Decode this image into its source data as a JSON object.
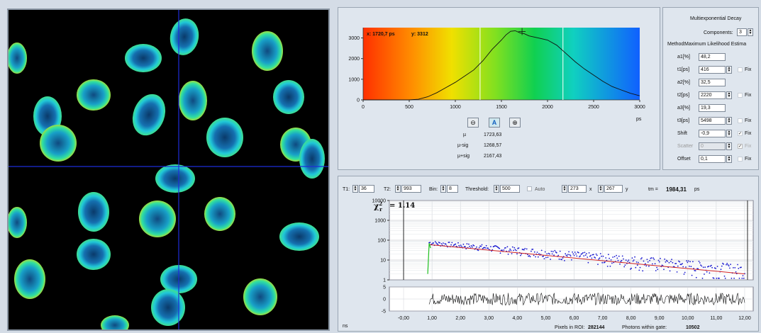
{
  "image": {
    "crosshair_color": "#1e2dd8"
  },
  "histogram": {
    "cursor_x": "x: 1720,7  ps",
    "cursor_y": "y: 3312",
    "unit": "ps",
    "zoom_out_icon": "zoom-out-icon",
    "auto_icon": "A",
    "zoom_in_icon": "zoom-in-icon",
    "stats": [
      {
        "label": "µ",
        "value": "1723,63"
      },
      {
        "label": "µ-sig",
        "value": "1268,57"
      },
      {
        "label": "µ+sig",
        "value": "2167,43"
      }
    ]
  },
  "chart_data": [
    {
      "type": "line",
      "title": "",
      "xlabel": "ps",
      "ylabel": "",
      "xlim": [
        0,
        3000
      ],
      "ylim": [
        0,
        3500
      ],
      "x_ticks": [
        "0",
        "500",
        "1000",
        "1500",
        "2000",
        "2500",
        "3000"
      ],
      "y_ticks": [
        "0",
        "1000",
        "2000",
        "3000"
      ],
      "colorbar": "rainbow red-to-blue",
      "series": [
        {
          "x": [
            0,
            500,
            600,
            700,
            800,
            900,
            1000,
            1100,
            1200,
            1300,
            1400,
            1500,
            1550,
            1600,
            1650,
            1700,
            1750,
            1800,
            1900,
            2000,
            2100,
            2200,
            2300,
            2400,
            2500,
            2600,
            2700,
            2800,
            2900,
            3000
          ],
          "y": [
            0,
            0,
            30,
            150,
            350,
            600,
            850,
            1150,
            1450,
            1900,
            2450,
            2900,
            3150,
            3320,
            3350,
            3250,
            3200,
            3100,
            3000,
            2900,
            2650,
            2250,
            1850,
            1500,
            1200,
            900,
            650,
            480,
            320,
            200
          ]
        }
      ],
      "markers_x": [
        1268.57,
        1723.63,
        2167.43
      ]
    },
    {
      "type": "scatter",
      "title": "",
      "xlabel": "ns",
      "ylabel": "",
      "y_scale": "log",
      "xlim": [
        -0.5,
        12.3
      ],
      "ylim": [
        1,
        10000
      ],
      "x_ticks": [
        "-0,00",
        "1,00",
        "2,00",
        "3,00",
        "4,00",
        "5,00",
        "6,00",
        "7,00",
        "8,00",
        "9,00",
        "10,00",
        "11,00",
        "12,00"
      ],
      "y_ticks": [
        "1",
        "10",
        "100",
        "1000",
        "10000"
      ],
      "chi_label": "χ",
      "chi_sub": "r",
      "chi_sup": "2",
      "chi_value": "= 1.14",
      "series": [
        {
          "name": "",
          "color": "#1a1ad0",
          "x": [
            0.9,
            12.0
          ],
          "y": [
            75,
            3
          ]
        },
        {
          "name": "",
          "color": "#d02020",
          "x": [
            0.9,
            12.0
          ],
          "y": [
            60,
            2
          ]
        },
        {
          "name": "",
          "color": "#20c020",
          "x": [
            0.85,
            0.9,
            0.95
          ],
          "y": [
            2,
            70,
            40
          ]
        }
      ],
      "gate_lines_x": [
        0.0,
        12.1
      ],
      "residuals_ylim": [
        -5,
        5
      ],
      "residual_ticks": [
        "5",
        "0",
        "-5"
      ]
    }
  ],
  "decay_toolbar": {
    "t1_label": "T1:",
    "t1_value": "36",
    "t2_label": "T2:",
    "t2_value": "993",
    "bin_label": "Bin:",
    "bin_value": "8",
    "threshold_label": "Threshold:",
    "threshold_value": "500",
    "auto_label": "Auto",
    "x_value": "273",
    "x_label": "x",
    "y_value": "267",
    "y_label": "y",
    "tm_label": "tm =",
    "tm_value": "1984,31",
    "tm_unit": "ps"
  },
  "decay_footer": {
    "pixels_label": "Pixels in ROI:",
    "pixels_value": "282144",
    "photons_label": "Photons within gate:",
    "photons_value": "10502"
  },
  "params": {
    "title": "Multiexponential Decay",
    "components_label": "Components:",
    "components_value": "3",
    "method_label": "Method:",
    "method_value": "Maximum Likelihood Estima",
    "fix_label": "Fix",
    "rows": [
      {
        "label": "a1[%]",
        "value": "48,2",
        "spin": false,
        "fix": false,
        "fix_checked": false,
        "disabled": false
      },
      {
        "label": "t1[ps]",
        "value": "416",
        "spin": true,
        "fix": true,
        "fix_checked": false,
        "disabled": false
      },
      {
        "label": "a2[%]",
        "value": "32,5",
        "spin": false,
        "fix": false,
        "fix_checked": false,
        "disabled": false
      },
      {
        "label": "t2[ps]",
        "value": "2220",
        "spin": true,
        "fix": true,
        "fix_checked": false,
        "disabled": false
      },
      {
        "label": "a3[%]",
        "value": "19,3",
        "spin": false,
        "fix": false,
        "fix_checked": false,
        "disabled": false
      },
      {
        "label": "t3[ps]",
        "value": "5498",
        "spin": true,
        "fix": true,
        "fix_checked": false,
        "disabled": false
      },
      {
        "label": "Shift",
        "value": "-0,9",
        "spin": true,
        "fix": true,
        "fix_checked": true,
        "disabled": false
      },
      {
        "label": "Scatter",
        "value": "0",
        "spin": true,
        "fix": true,
        "fix_checked": true,
        "disabled": true
      },
      {
        "label": "Offset",
        "value": "0,1",
        "spin": true,
        "fix": true,
        "fix_checked": false,
        "disabled": false
      }
    ]
  }
}
